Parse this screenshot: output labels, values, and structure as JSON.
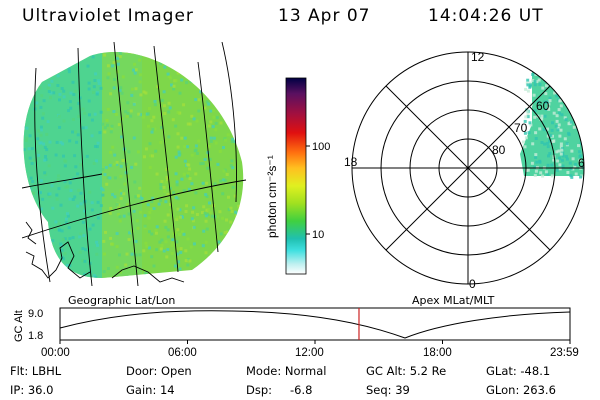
{
  "header": {
    "title": "Ultraviolet Imager",
    "date": "13 Apr 07",
    "time": "14:04:26 UT"
  },
  "colorbar": {
    "unit_label": "photon cm⁻²s⁻¹",
    "ticks": [
      "100",
      "10"
    ],
    "colors": [
      "#000044",
      "#5a1060",
      "#a01040",
      "#e01010",
      "#ff7010",
      "#ffc020",
      "#e0f020",
      "#a0e020",
      "#40d040",
      "#20c0b0",
      "#40e0e0",
      "#c0f0f0",
      "#ffffff"
    ]
  },
  "geo_panel": {
    "label": "Geographic Lat/Lon"
  },
  "polar_panel": {
    "label": "Apex MLat/MLT",
    "mlt_labels": {
      "top": "12",
      "left": "18",
      "right": "6",
      "bottom": "0"
    },
    "lat_labels": [
      "60",
      "70",
      "80"
    ]
  },
  "timeline": {
    "ylabel": "GC Alt",
    "yticks": [
      "9.0",
      "1.8"
    ],
    "xticks": [
      "00:00",
      "06:00",
      "12:00",
      "18:00",
      "23:59"
    ],
    "current_marker_hour": 14.07,
    "marker_color": "#cc2222"
  },
  "info": {
    "flt": "Flt: LBHL",
    "door": "Door: Open",
    "mode": "Mode: Normal",
    "gc_alt": "GC Alt: 5.2 Re",
    "glat": "GLat: -48.1",
    "ip": "IP: 36.0",
    "gain": "Gain: 14",
    "dsp_label": "Dsp:",
    "dsp_value": "-6.8",
    "seq": "Seq: 39",
    "glon": "GLon: 263.6"
  }
}
